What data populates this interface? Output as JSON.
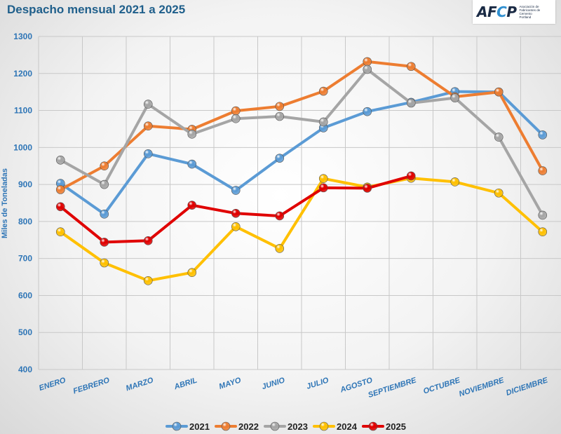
{
  "title": "Despacho mensual 2021 a 2025",
  "logo": {
    "name": "AFCP",
    "subtitle": "Asociación de Fabricantes de Cemento Portland"
  },
  "chart_data": {
    "type": "line",
    "ylabel": "Miles de Toneladas",
    "ylim": [
      400,
      1300
    ],
    "yticks": [
      400,
      500,
      600,
      700,
      800,
      900,
      1000,
      1100,
      1200,
      1300
    ],
    "grid": true,
    "legend_position": "bottom",
    "categories": [
      "ENERO",
      "FEBRERO",
      "MARZO",
      "ABRIL",
      "MAYO",
      "JUNIO",
      "JULIO",
      "AGOSTO",
      "SEPTIEMBRE",
      "OCTUBRE",
      "NOVIEMBRE",
      "DICIEMBRE"
    ],
    "series": [
      {
        "name": "2021",
        "color": "#5b9bd5",
        "values": [
          903,
          820,
          983,
          955,
          884,
          971,
          1053,
          1097,
          1122,
          1151,
          1150,
          1034
        ]
      },
      {
        "name": "2022",
        "color": "#ed7d31",
        "values": [
          886,
          950,
          1058,
          1049,
          1099,
          1111,
          1152,
          1232,
          1219,
          1137,
          1150,
          937
        ]
      },
      {
        "name": "2023",
        "color": "#a5a5a5",
        "values": [
          966,
          900,
          1117,
          1036,
          1078,
          1084,
          1069,
          1211,
          1120,
          1134,
          1028,
          817
        ]
      },
      {
        "name": "2024",
        "color": "#ffc000",
        "values": [
          772,
          688,
          640,
          662,
          786,
          727,
          916,
          893,
          917,
          907,
          877,
          772
        ]
      },
      {
        "name": "2025",
        "color": "#e00000",
        "values": [
          840,
          744,
          748,
          844,
          822,
          815,
          891,
          890,
          923,
          null,
          null,
          null
        ]
      }
    ]
  }
}
